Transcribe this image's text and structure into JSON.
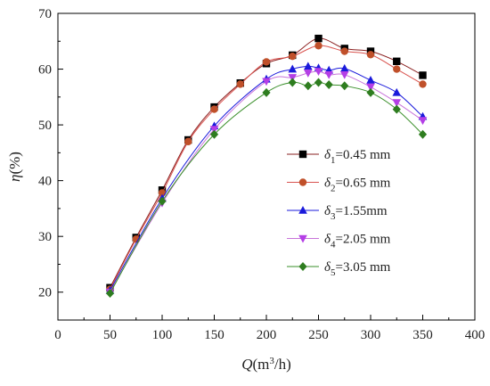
{
  "chart_data": {
    "type": "line",
    "xlabel_var": "Q",
    "xlabel_unit_pre": "(m",
    "xlabel_sup": "3",
    "xlabel_unit_post": "/h)",
    "ylabel_var": "η",
    "ylabel_unit": "(%)",
    "xlim": [
      0,
      400
    ],
    "ylim": [
      15,
      70
    ],
    "xticks": [
      0,
      50,
      100,
      150,
      200,
      250,
      300,
      350,
      400
    ],
    "yticks": [
      20,
      30,
      40,
      50,
      60,
      70
    ],
    "grid": false,
    "legend_position": "right-center",
    "series": [
      {
        "sym": "δ",
        "sub": "1",
        "text": "=0.45 mm",
        "color": "#000000",
        "line_color": "#8a1f1f",
        "marker": "square",
        "x": [
          50,
          75,
          100,
          125,
          150,
          175,
          200,
          225,
          250,
          275,
          300,
          325,
          350
        ],
        "y": [
          20.8,
          29.8,
          38.3,
          47.3,
          53.2,
          57.5,
          61.0,
          62.5,
          65.5,
          63.7,
          63.2,
          61.4,
          58.9
        ]
      },
      {
        "sym": "δ",
        "sub": "2",
        "text": "=0.65 mm",
        "color": "#c0502a",
        "line_color": "#d9534f",
        "marker": "circle",
        "x": [
          50,
          75,
          100,
          125,
          150,
          175,
          200,
          225,
          250,
          275,
          300,
          325,
          350
        ],
        "y": [
          20.5,
          29.5,
          37.8,
          47.0,
          52.8,
          57.3,
          61.3,
          62.3,
          64.2,
          63.2,
          62.6,
          60.0,
          57.3
        ]
      },
      {
        "sym": "δ",
        "sub": "3",
        "text": "=1.55mm",
        "color": "#1a1adb",
        "line_color": "#1a1adb",
        "marker": "triangle-up",
        "x": [
          50,
          100,
          150,
          200,
          225,
          240,
          250,
          260,
          275,
          300,
          325,
          350
        ],
        "y": [
          20.3,
          36.8,
          49.8,
          58.2,
          60.0,
          60.5,
          60.2,
          59.8,
          60.1,
          58.0,
          55.8,
          51.5
        ]
      },
      {
        "sym": "δ",
        "sub": "4",
        "text": "=2.05 mm",
        "color": "#b43ee6",
        "line_color": "#c873d9",
        "marker": "triangle-down",
        "x": [
          50,
          100,
          150,
          200,
          225,
          240,
          250,
          260,
          275,
          300,
          325,
          350
        ],
        "y": [
          20.0,
          36.0,
          49.2,
          57.8,
          58.5,
          59.3,
          59.6,
          59.0,
          59.0,
          56.8,
          54.0,
          50.8
        ]
      },
      {
        "sym": "δ",
        "sub": "5",
        "text": "=3.05 mm",
        "color": "#2e7d1f",
        "line_color": "#3a8f2a",
        "marker": "diamond",
        "x": [
          50,
          100,
          150,
          200,
          225,
          240,
          250,
          260,
          275,
          300,
          325,
          350
        ],
        "y": [
          19.8,
          36.3,
          48.3,
          55.8,
          57.6,
          57.0,
          57.6,
          57.2,
          57.0,
          55.8,
          52.8,
          48.3
        ]
      }
    ]
  }
}
